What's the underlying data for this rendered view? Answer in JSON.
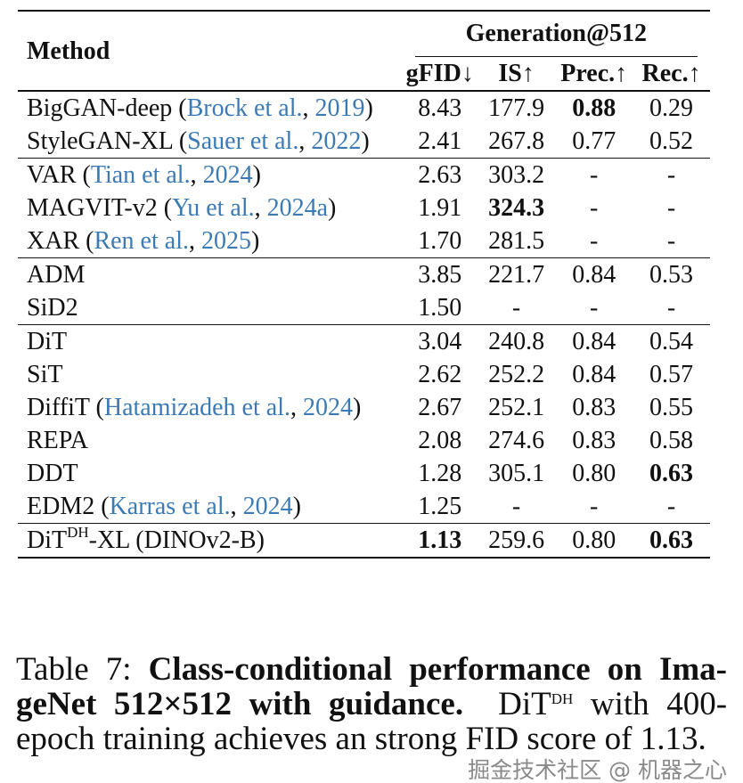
{
  "table": {
    "header": {
      "method": "Method",
      "group": "Generation@512",
      "columns": [
        "gFID↓",
        "IS↑",
        "Prec.↑",
        "Rec.↑"
      ]
    },
    "groups": [
      [
        {
          "name": "BigGAN-deep",
          "cite_author": "Brock et al.",
          "cite_year": "2019",
          "values": [
            "8.43",
            "177.9",
            "0.88",
            "0.29"
          ],
          "bold": [
            false,
            false,
            true,
            false
          ]
        },
        {
          "name": "StyleGAN-XL",
          "cite_author": "Sauer et al.",
          "cite_year": "2022",
          "values": [
            "2.41",
            "267.8",
            "0.77",
            "0.52"
          ],
          "bold": [
            false,
            false,
            false,
            false
          ]
        }
      ],
      [
        {
          "name": "VAR",
          "cite_author": "Tian et al.",
          "cite_year": "2024",
          "values": [
            "2.63",
            "303.2",
            "-",
            "-"
          ],
          "bold": [
            false,
            false,
            false,
            false
          ]
        },
        {
          "name": "MAGVIT-v2",
          "cite_author": "Yu et al.",
          "cite_year": "2024a",
          "values": [
            "1.91",
            "324.3",
            "-",
            "-"
          ],
          "bold": [
            false,
            true,
            false,
            false
          ]
        },
        {
          "name": "XAR",
          "cite_author": "Ren et al.",
          "cite_year": "2025",
          "values": [
            "1.70",
            "281.5",
            "-",
            "-"
          ],
          "bold": [
            false,
            false,
            false,
            false
          ]
        }
      ],
      [
        {
          "name": "ADM",
          "values": [
            "3.85",
            "221.7",
            "0.84",
            "0.53"
          ],
          "bold": [
            false,
            false,
            false,
            false
          ]
        },
        {
          "name": "SiD2",
          "values": [
            "1.50",
            "-",
            "-",
            "-"
          ],
          "bold": [
            false,
            false,
            false,
            false
          ]
        }
      ],
      [
        {
          "name": "DiT",
          "values": [
            "3.04",
            "240.8",
            "0.84",
            "0.54"
          ],
          "bold": [
            false,
            false,
            false,
            false
          ]
        },
        {
          "name": "SiT",
          "values": [
            "2.62",
            "252.2",
            "0.84",
            "0.57"
          ],
          "bold": [
            false,
            false,
            false,
            false
          ]
        },
        {
          "name": "DiffiT",
          "cite_author": "Hatamizadeh et al.",
          "cite_year": "2024",
          "values": [
            "2.67",
            "252.1",
            "0.83",
            "0.55"
          ],
          "bold": [
            false,
            false,
            false,
            false
          ]
        },
        {
          "name": "REPA",
          "values": [
            "2.08",
            "274.6",
            "0.83",
            "0.58"
          ],
          "bold": [
            false,
            false,
            false,
            false
          ]
        },
        {
          "name": "DDT",
          "values": [
            "1.28",
            "305.1",
            "0.80",
            "0.63"
          ],
          "bold": [
            false,
            false,
            false,
            true
          ]
        },
        {
          "name": "EDM2",
          "cite_author": "Karras et al.",
          "cite_year": "2024",
          "values": [
            "1.25",
            "-",
            "-",
            "-"
          ],
          "bold": [
            false,
            false,
            false,
            false
          ]
        }
      ],
      [
        {
          "name": "DiT",
          "sup": "DH",
          "suffix": "-XL (DINOv2-B)",
          "values": [
            "1.13",
            "259.6",
            "0.80",
            "0.63"
          ],
          "bold": [
            true,
            false,
            false,
            true
          ]
        }
      ]
    ]
  },
  "caption": {
    "label": "Table 7:",
    "bold": "Class-conditional performance on Ima­geNet 512×512 with guidance.",
    "model": "DiT",
    "model_sup": "DH",
    "rest": "with 400-epoch training achieves an strong FID score of 1.13."
  },
  "watermark": "掘金技术社区 @ 机器之心"
}
